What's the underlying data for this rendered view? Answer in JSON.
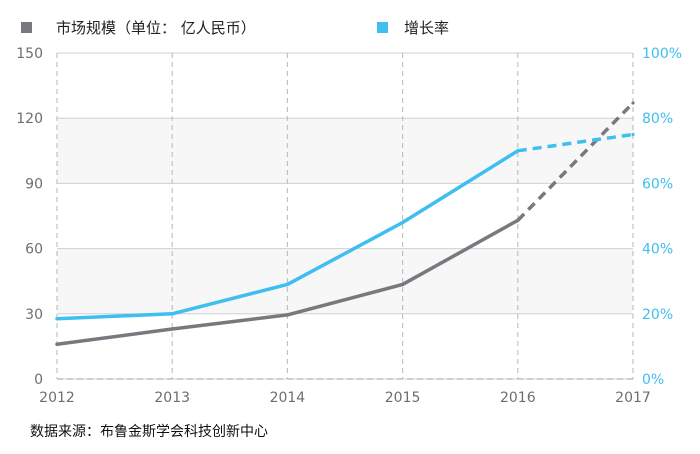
{
  "chart_data": {
    "type": "line",
    "title": "",
    "legend": {
      "position": "top",
      "items": [
        {
          "label": "市场规模（单位：  亿人民币）",
          "color": "#78787f"
        },
        {
          "label": "增长率",
          "color": "#3fbef0"
        }
      ]
    },
    "x": [
      "2012",
      "2013",
      "2014",
      "2015",
      "2016",
      "2017"
    ],
    "y_left": {
      "ticks": [
        "0",
        "30",
        "60",
        "90",
        "120",
        "150"
      ],
      "lim": [
        0,
        150
      ]
    },
    "y_right": {
      "ticks": [
        "0%",
        "20%",
        "40%",
        "60%",
        "80%",
        "100%"
      ],
      "lim": [
        0,
        100
      ]
    },
    "grid": true,
    "series": [
      {
        "name": "市场规模（单位：  亿人民币）",
        "axis": "left",
        "color": "#78787f",
        "values": [
          16,
          23,
          29.5,
          43.5,
          73,
          127
        ],
        "projected_from_index": 4
      },
      {
        "name": "增长率",
        "axis": "right",
        "color": "#3fbef0",
        "values": [
          18.5,
          20,
          29,
          48,
          70,
          75
        ],
        "projected_from_index": 4
      }
    ]
  },
  "footer": {
    "source": "数据来源：布鲁金斯学会科技创新中心"
  }
}
